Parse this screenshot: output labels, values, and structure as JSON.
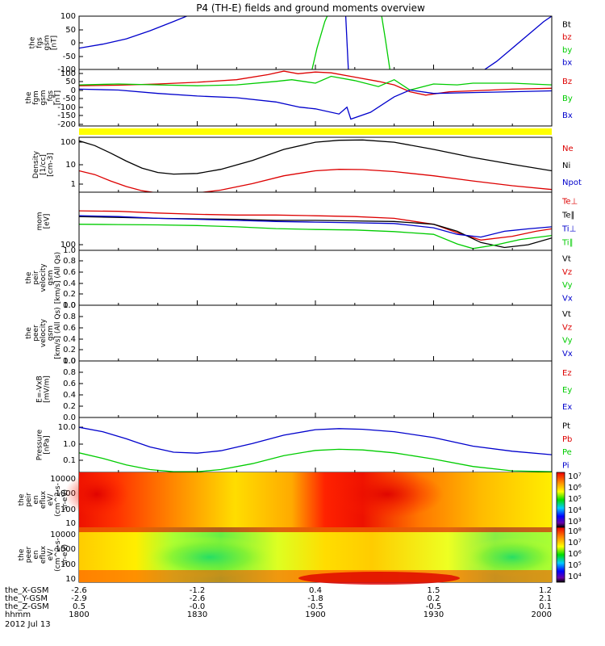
{
  "title": "P4 (TH-E) fields and ground moments overview",
  "date_label": "2012 Jul 13",
  "ephemeris": {
    "labels": [
      "the_X-GSM",
      "the_Y-GSM",
      "the_Z-GSM",
      "hhmm"
    ],
    "rows": [
      [
        "-2.6",
        "-1.2",
        "0.4",
        "1.5",
        "1.2"
      ],
      [
        "-2.9",
        "-2.6",
        "-1.8",
        "0.2",
        "2.1"
      ],
      [
        "0.5",
        "-0.0",
        "-0.5",
        "-0.5",
        "0.1"
      ],
      [
        "1800",
        "1830",
        "1900",
        "1930",
        "2000"
      ]
    ]
  },
  "colorbars": [
    {
      "panel": 11,
      "labels": [
        "10⁷",
        "10⁶",
        "10⁵",
        "10⁴",
        "10³"
      ]
    },
    {
      "panel": 12,
      "labels": [
        "10⁸",
        "10⁷",
        "10⁶",
        "10⁵",
        "10⁴"
      ]
    }
  ],
  "chart_data": [
    {
      "type": "line",
      "ylabel": [
        "the",
        "fgs",
        "gsm",
        "[nT]"
      ],
      "yticks": [
        "100",
        "50",
        "0",
        "-50",
        "-100"
      ],
      "ylim": [
        -100,
        100
      ],
      "legend": [
        {
          "text": "Bt",
          "color": "#000000"
        },
        {
          "text": "bz",
          "color": "#dd0000"
        },
        {
          "text": "by",
          "color": "#00cc00"
        },
        {
          "text": "bx",
          "color": "#0000cc"
        }
      ],
      "series": [
        {
          "name": "bx",
          "color": "#0000cc",
          "x": [
            0,
            3,
            6,
            9,
            12,
            14.5
          ],
          "y": [
            -20,
            -5,
            15,
            45,
            80,
            110
          ]
        },
        {
          "name": "bx",
          "color": "#0000cc",
          "x": [
            51,
            53,
            55,
            57,
            59,
            60
          ],
          "y": [
            -110,
            -70,
            -20,
            30,
            80,
            100
          ]
        },
        {
          "name": "by",
          "color": "#00cc00",
          "x": [
            29.5,
            30.2,
            31.2,
            31.8,
            32.2
          ],
          "y": [
            -110,
            -20,
            80,
            120,
            130
          ]
        },
        {
          "name": "by",
          "color": "#00cc00",
          "x": [
            38.3,
            38.9,
            39.5
          ],
          "y": [
            120,
            10,
            -110
          ]
        },
        {
          "name": "bx",
          "color": "#0000cc",
          "x": [
            33.8,
            34.2
          ],
          "y": [
            130,
            -110
          ]
        }
      ]
    },
    {
      "type": "line",
      "ylabel": [
        "the",
        "fgm",
        "gsm",
        "_fgs",
        "[nT]"
      ],
      "yticks": [
        "100",
        "50",
        "0",
        "-50",
        "-100",
        "-150",
        "-200"
      ],
      "ylim": [
        -230,
        100
      ],
      "legend": [
        {
          "text": "Bz",
          "color": "#dd0000"
        },
        {
          "text": "By",
          "color": "#00cc00"
        },
        {
          "text": "Bx",
          "color": "#0000cc"
        }
      ],
      "series": [
        {
          "name": "Bz",
          "color": "#dd0000",
          "x": [
            0,
            5,
            10,
            15,
            20,
            24,
            26,
            27.8,
            30,
            32,
            35,
            38,
            40,
            42,
            44,
            47,
            50,
            55,
            60
          ],
          "y": [
            5,
            8,
            15,
            25,
            40,
            70,
            90,
            75,
            85,
            80,
            55,
            30,
            10,
            -30,
            -50,
            -30,
            -25,
            -15,
            -10
          ]
        },
        {
          "name": "By",
          "color": "#00cc00",
          "x": [
            0,
            5,
            10,
            15,
            20,
            25,
            27,
            30,
            32,
            35,
            38,
            40,
            42,
            45,
            48,
            50,
            55,
            60
          ],
          "y": [
            10,
            15,
            10,
            5,
            10,
            30,
            40,
            20,
            60,
            35,
            0,
            40,
            -20,
            15,
            10,
            20,
            20,
            10
          ]
        },
        {
          "name": "Bx",
          "color": "#0000cc",
          "x": [
            0,
            5,
            10,
            15,
            20,
            25,
            28,
            30,
            33,
            34,
            34.5,
            37,
            40,
            42,
            45,
            50,
            55,
            60
          ],
          "y": [
            -15,
            -20,
            -40,
            -55,
            -65,
            -90,
            -120,
            -130,
            -160,
            -120,
            -190,
            -150,
            -60,
            -20,
            -40,
            -35,
            -30,
            -25
          ]
        }
      ]
    },
    {
      "type": "line",
      "ylabel": [
        "Density",
        "[1/cc]",
        "[cm-3]"
      ],
      "yticks": [
        "100",
        "10",
        "1"
      ],
      "ylim": [
        0.6,
        220
      ],
      "log": true,
      "legend": [
        {
          "text": "Ne",
          "color": "#dd0000"
        },
        {
          "text": "Ni",
          "color": "#000000"
        },
        {
          "text": "Npot",
          "color": "#0000cc"
        }
      ],
      "series": [
        {
          "name": "Ni",
          "color": "#000000",
          "x": [
            0,
            2,
            4,
            6,
            8,
            10,
            12,
            15,
            18,
            22,
            26,
            30,
            33,
            36,
            40,
            45,
            50,
            55,
            60
          ],
          "y": [
            150,
            90,
            40,
            17,
            8,
            5,
            4.2,
            4.5,
            7,
            18,
            60,
            130,
            160,
            165,
            130,
            60,
            25,
            12,
            6
          ]
        },
        {
          "name": "Ne",
          "color": "#dd0000",
          "x": [
            0,
            2,
            4,
            6,
            8,
            10,
            12,
            15,
            18,
            22,
            26,
            30,
            33,
            36,
            40,
            45,
            50,
            55,
            60
          ],
          "y": [
            6,
            4,
            2,
            1.1,
            0.7,
            0.55,
            0.52,
            0.55,
            0.75,
            1.5,
            3.5,
            6,
            7,
            6.8,
            5.5,
            3.5,
            2,
            1.2,
            0.8
          ]
        }
      ]
    },
    {
      "type": "line",
      "ylabel": [
        "mom",
        "[eV]"
      ],
      "yticks": [
        "100"
      ],
      "ylim": [
        95,
        11000
      ],
      "log": true,
      "legend": [
        {
          "text": "Te⊥",
          "color": "#dd0000"
        },
        {
          "text": "Te∥",
          "color": "#000000"
        },
        {
          "text": "Ti⊥",
          "color": "#0000cc"
        },
        {
          "text": "Ti∥",
          "color": "#00cc00"
        }
      ],
      "series": [
        {
          "name": "Te⊥",
          "color": "#dd0000",
          "x": [
            0,
            5,
            10,
            15,
            20,
            25,
            30,
            35,
            40,
            45,
            48,
            51,
            55,
            58,
            60
          ],
          "y": [
            2400,
            2300,
            2000,
            1800,
            1700,
            1700,
            1600,
            1500,
            1300,
            800,
            400,
            220,
            300,
            450,
            550
          ]
        },
        {
          "name": "Te∥",
          "color": "#000000",
          "x": [
            0,
            5,
            10,
            15,
            20,
            25,
            30,
            35,
            40,
            45,
            48,
            51,
            54,
            57,
            60
          ],
          "y": [
            1500,
            1400,
            1300,
            1250,
            1200,
            1100,
            1100,
            1050,
            1000,
            800,
            450,
            180,
            120,
            150,
            260
          ]
        },
        {
          "name": "Ti⊥",
          "color": "#0000cc",
          "x": [
            0,
            5,
            10,
            15,
            20,
            25,
            30,
            35,
            40,
            45,
            48,
            51,
            54,
            57,
            60
          ],
          "y": [
            1600,
            1500,
            1300,
            1200,
            1100,
            1000,
            950,
            900,
            850,
            600,
            350,
            280,
            450,
            550,
            650
          ]
        },
        {
          "name": "Ti∥",
          "color": "#00cc00",
          "x": [
            0,
            5,
            10,
            15,
            20,
            25,
            30,
            35,
            40,
            45,
            48,
            50,
            53,
            56,
            60
          ],
          "y": [
            800,
            780,
            760,
            720,
            650,
            560,
            520,
            500,
            440,
            350,
            160,
            110,
            150,
            230,
            320
          ]
        }
      ]
    },
    {
      "type": "line",
      "ylabel": [
        "the",
        "peir",
        "velocity",
        "gsm",
        "[km/s] (All Qs)"
      ],
      "yticks": [
        "1.0",
        "0.8",
        "0.6",
        "0.4",
        "0.2",
        "0.0"
      ],
      "ylim": [
        0,
        1
      ],
      "legend": [
        {
          "text": "Vt",
          "color": "#000000"
        },
        {
          "text": "Vz",
          "color": "#dd0000"
        },
        {
          "text": "Vy",
          "color": "#00cc00"
        },
        {
          "text": "Vx",
          "color": "#0000cc"
        }
      ],
      "series": []
    },
    {
      "type": "line",
      "ylabel": [
        "the",
        "peer",
        "velocity",
        "gsm",
        "[km/s] (All Qs)"
      ],
      "yticks": [
        "1.0",
        "0.8",
        "0.6",
        "0.4",
        "0.2",
        "0.0"
      ],
      "ylim": [
        0,
        1
      ],
      "legend": [
        {
          "text": "Vt",
          "color": "#000000"
        },
        {
          "text": "Vz",
          "color": "#dd0000"
        },
        {
          "text": "Vy",
          "color": "#00cc00"
        },
        {
          "text": "Vx",
          "color": "#0000cc"
        }
      ],
      "series": []
    },
    {
      "type": "line",
      "ylabel": [
        "E=-VxB",
        "[mV/m]"
      ],
      "yticks": [
        "1.0",
        "0.8",
        "0.6",
        "0.4",
        "0.2",
        "0.0"
      ],
      "ylim": [
        0,
        1
      ],
      "legend": [
        {
          "text": "Ez",
          "color": "#dd0000"
        },
        {
          "text": "Ey",
          "color": "#00cc00"
        },
        {
          "text": "Ex",
          "color": "#0000cc"
        }
      ],
      "series": []
    },
    {
      "type": "line",
      "ylabel": [
        "Pressure",
        "[nPa]"
      ],
      "yticks": [
        "10.0",
        "1.0",
        "0.1"
      ],
      "ylim": [
        0.025,
        16
      ],
      "log": true,
      "legend": [
        {
          "text": "Pt",
          "color": "#000000"
        },
        {
          "text": "Pb",
          "color": "#dd0000"
        },
        {
          "text": "Pe",
          "color": "#00cc00"
        },
        {
          "text": "Pi",
          "color": "#0000cc"
        }
      ],
      "series": [
        {
          "name": "Pi",
          "color": "#0000cc",
          "x": [
            0,
            3,
            6,
            9,
            12,
            15,
            18,
            22,
            26,
            30,
            33,
            36,
            40,
            45,
            50,
            55,
            60
          ],
          "y": [
            5,
            3,
            1.3,
            0.5,
            0.27,
            0.24,
            0.32,
            0.75,
            2,
            3.8,
            4.3,
            4,
            3,
            1.5,
            0.55,
            0.3,
            0.2
          ]
        },
        {
          "name": "Pe",
          "color": "#00cc00",
          "x": [
            0,
            3,
            6,
            9,
            12,
            15,
            18,
            22,
            26,
            30,
            33,
            36,
            40,
            45,
            50,
            55,
            60
          ],
          "y": [
            0.25,
            0.13,
            0.06,
            0.035,
            0.027,
            0.027,
            0.035,
            0.07,
            0.18,
            0.33,
            0.38,
            0.35,
            0.25,
            0.12,
            0.05,
            0.03,
            0.027
          ]
        }
      ]
    },
    {
      "type": "heatmap",
      "ylabel": [
        "the",
        "peir",
        "en",
        "eflux",
        "eV/",
        "(cm^2-s-",
        "sr-eV)"
      ],
      "yticks": [
        "10000",
        "1000",
        "100",
        "10"
      ],
      "ylim": [
        6,
        22000
      ],
      "log": true
    },
    {
      "type": "heatmap",
      "ylabel": [
        "the",
        "peer",
        "en",
        "eflux",
        "eV/",
        "(cm^2-s-",
        "sr-eV)"
      ],
      "yticks": [
        "10000",
        "1000",
        "100",
        "10"
      ],
      "ylim": [
        6,
        22000
      ],
      "log": true
    }
  ]
}
